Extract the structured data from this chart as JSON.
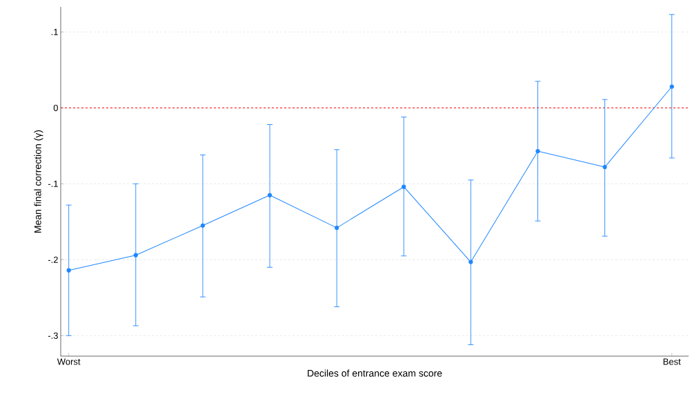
{
  "chart_data": {
    "type": "line",
    "xlabel": "Deciles of entrance exam score",
    "ylabel": "Mean final correction (γ)",
    "categories": [
      "Worst",
      null,
      null,
      null,
      null,
      null,
      null,
      null,
      null,
      "Best"
    ],
    "series": [
      {
        "color": "#1f87ff",
        "values": [
          -0.214,
          -0.194,
          -0.155,
          -0.115,
          -0.158,
          -0.104,
          -0.203,
          -0.057,
          -0.078,
          0.028
        ],
        "errors": [
          [
            -0.3,
            -0.128
          ],
          [
            -0.287,
            -0.1
          ],
          [
            -0.249,
            -0.062
          ],
          [
            -0.21,
            -0.022
          ],
          [
            -0.262,
            -0.055
          ],
          [
            -0.195,
            -0.012
          ],
          [
            -0.312,
            -0.095
          ],
          [
            -0.149,
            0.035
          ],
          [
            -0.169,
            0.011
          ],
          [
            -0.066,
            0.123
          ]
        ]
      }
    ],
    "ylim": [
      -0.327,
      0.133
    ],
    "yticks": [
      {
        "value": -0.3,
        "label": "-.3"
      },
      {
        "value": -0.2,
        "label": "-.2"
      },
      {
        "value": -0.1,
        "label": "-.1"
      },
      {
        "value": 0,
        "label": "0"
      },
      {
        "value": 0.1,
        "label": ".1"
      }
    ],
    "ref_lines": [
      {
        "axis": "y",
        "value": 0,
        "color": "#ff0000",
        "line_style": "dashed"
      }
    ],
    "grid": "y",
    "marker": "circle",
    "line_style": "solid"
  }
}
